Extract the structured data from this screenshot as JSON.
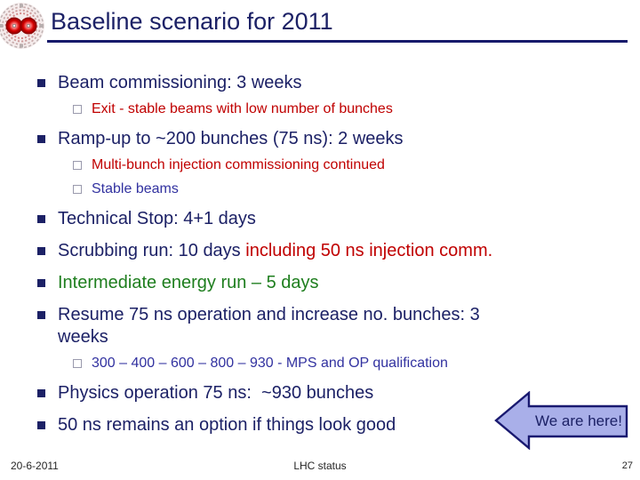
{
  "slide": {
    "title": "Baseline scenario for 2011",
    "colors": {
      "navy": "#1c2166",
      "blue": "#3232a0",
      "red": "#c00000",
      "green": "#1e7e1e",
      "bullet_grey": "#9a9aad",
      "underline": "#171a6b",
      "footer_text": "#262626",
      "callout_fill": "#a9afe9",
      "callout_border": "#191970"
    },
    "bullets": [
      {
        "level": 1,
        "segments": [
          {
            "text": "Beam commissioning: 3 weeks",
            "color": "navy"
          }
        ]
      },
      {
        "level": 2,
        "segments": [
          {
            "text": "Exit - stable beams with low number of bunches",
            "color": "red"
          }
        ]
      },
      {
        "level": 1,
        "segments": [
          {
            "text": "Ramp-up to ~200 bunches (75 ns): 2 weeks",
            "color": "navy"
          }
        ]
      },
      {
        "level": 2,
        "segments": [
          {
            "text": "Multi-bunch injection commissioning continued",
            "color": "red"
          }
        ]
      },
      {
        "level": 2,
        "segments": [
          {
            "text": "Stable beams",
            "color": "blue"
          }
        ]
      },
      {
        "level": 1,
        "segments": [
          {
            "text": "Technical Stop: 4+1 days",
            "color": "navy"
          }
        ]
      },
      {
        "level": 1,
        "segments": [
          {
            "text": "Scrubbing run: 10 days ",
            "color": "navy"
          },
          {
            "text": "including 50 ns injection comm.",
            "color": "red"
          }
        ]
      },
      {
        "level": 1,
        "segments": [
          {
            "text": "Intermediate energy run – 5 days",
            "color": "green"
          }
        ]
      },
      {
        "level": 1,
        "segments": [
          {
            "text": "Resume 75 ns operation and increase no. bunches: 3 weeks",
            "color": "navy"
          }
        ]
      },
      {
        "level": 2,
        "segments": [
          {
            "text": "300 – 400 – 600 – 800 – 930 - MPS and OP qualification",
            "color": "blue"
          }
        ]
      },
      {
        "level": 1,
        "segments": [
          {
            "text": "Physics operation 75 ns:  ~930 bunches",
            "color": "navy"
          }
        ]
      },
      {
        "level": 1,
        "segments": [
          {
            "text": "50 ns remains an option if things look good",
            "color": "navy"
          }
        ]
      }
    ],
    "callout": {
      "label": "We are here!"
    },
    "footer": {
      "date": "20-6-2011",
      "center": "LHC status",
      "page_number": "27"
    }
  }
}
